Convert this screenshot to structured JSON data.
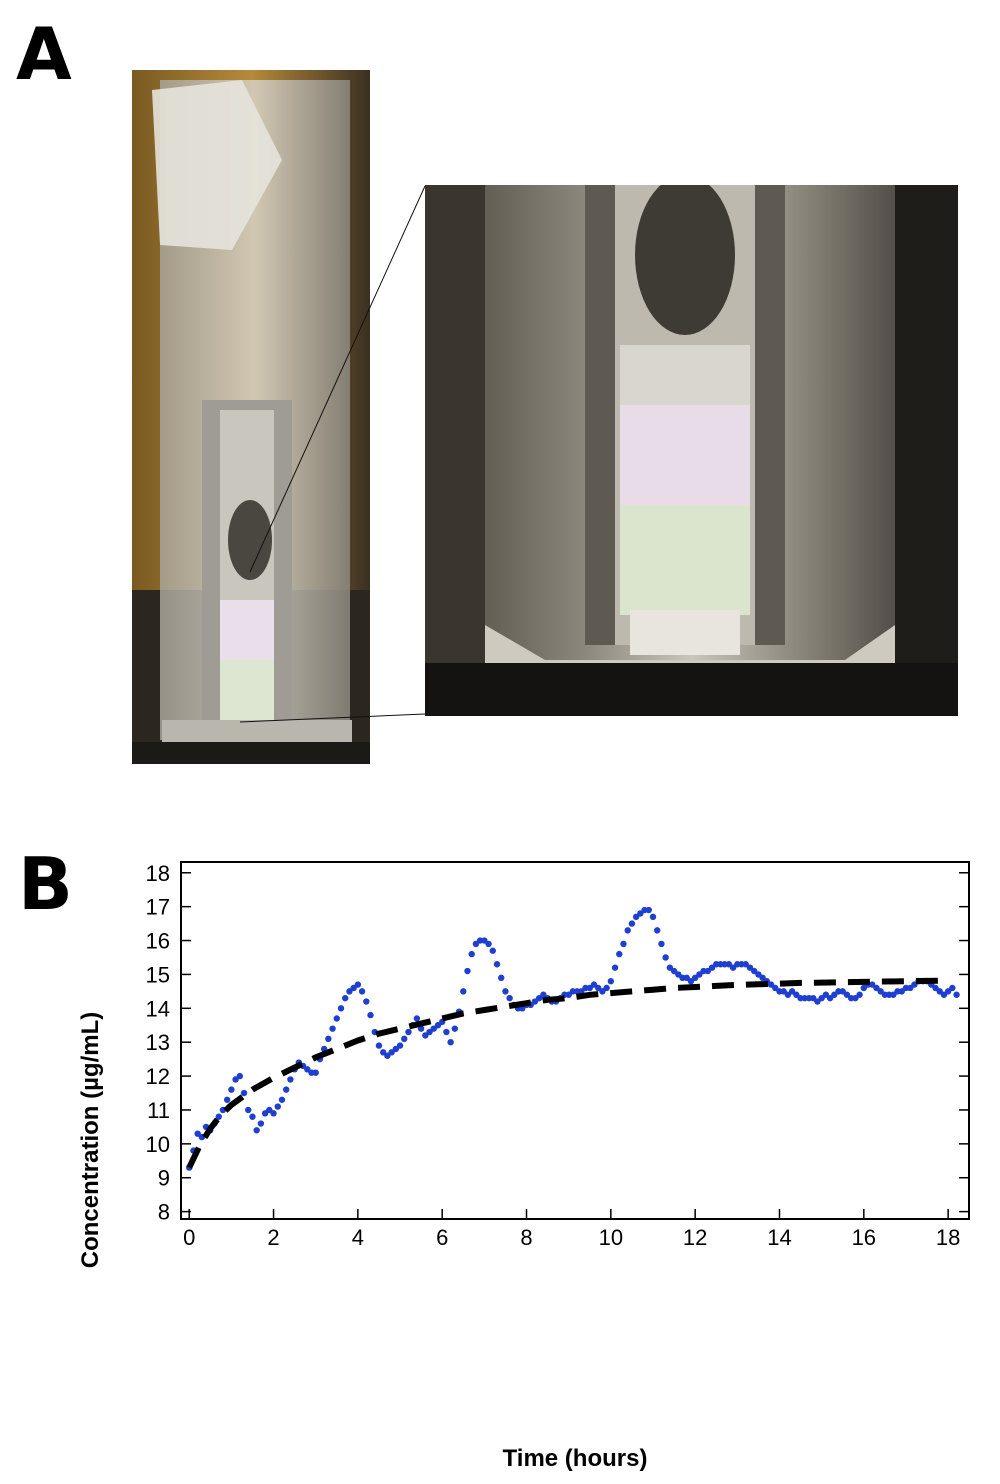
{
  "panels": {
    "a": {
      "label": "A",
      "photos": {
        "main": "cuvette-photo",
        "zoom": "cuvette-zoom-photo"
      }
    },
    "b": {
      "label": "B"
    }
  },
  "colors": {
    "points": "#1f3fd0",
    "fit": "#000000"
  },
  "chart_data": {
    "type": "scatter",
    "title": "",
    "xlabel": "Time (hours)",
    "ylabel": "Concentration (µg/mL)",
    "xlim": [
      -0.1,
      18.4
    ],
    "ylim": [
      7.9,
      18.2
    ],
    "xticks": [
      0,
      2,
      4,
      6,
      8,
      10,
      12,
      14,
      16,
      18
    ],
    "yticks": [
      8,
      9,
      10,
      11,
      12,
      13,
      14,
      15,
      16,
      17,
      18
    ],
    "grid": false,
    "legend": "none",
    "series": [
      {
        "kind": "points",
        "x": [
          0.0,
          0.1,
          0.2,
          0.3,
          0.4,
          0.5,
          0.6,
          0.7,
          0.8,
          0.9,
          1.0,
          1.1,
          1.2,
          1.3,
          1.4,
          1.5,
          1.6,
          1.7,
          1.8,
          1.9,
          2.0,
          2.1,
          2.2,
          2.3,
          2.4,
          2.5,
          2.6,
          2.7,
          2.8,
          2.9,
          3.0,
          3.1,
          3.2,
          3.3,
          3.4,
          3.5,
          3.6,
          3.7,
          3.8,
          3.9,
          4.0,
          4.1,
          4.2,
          4.3,
          4.4,
          4.5,
          4.6,
          4.7,
          4.8,
          4.9,
          5.0,
          5.1,
          5.2,
          5.3,
          5.4,
          5.5,
          5.6,
          5.7,
          5.8,
          5.9,
          6.0,
          6.1,
          6.2,
          6.3,
          6.4,
          6.5,
          6.6,
          6.7,
          6.8,
          6.9,
          7.0,
          7.1,
          7.2,
          7.3,
          7.4,
          7.5,
          7.6,
          7.7,
          7.8,
          7.9,
          8.0,
          8.1,
          8.2,
          8.3,
          8.4,
          8.5,
          8.6,
          8.7,
          8.8,
          8.9,
          9.0,
          9.1,
          9.2,
          9.3,
          9.4,
          9.5,
          9.6,
          9.7,
          9.8,
          9.9,
          10.0,
          10.1,
          10.2,
          10.3,
          10.4,
          10.5,
          10.6,
          10.7,
          10.8,
          10.9,
          11.0,
          11.1,
          11.2,
          11.3,
          11.4,
          11.5,
          11.6,
          11.7,
          11.8,
          11.9,
          12.0,
          12.1,
          12.2,
          12.3,
          12.4,
          12.5,
          12.6,
          12.7,
          12.8,
          12.9,
          13.0,
          13.1,
          13.2,
          13.3,
          13.4,
          13.5,
          13.6,
          13.7,
          13.8,
          13.9,
          14.0,
          14.1,
          14.2,
          14.3,
          14.4,
          14.5,
          14.6,
          14.7,
          14.8,
          14.9,
          15.0,
          15.1,
          15.2,
          15.3,
          15.4,
          15.5,
          15.6,
          15.7,
          15.8,
          15.9,
          16.0,
          16.1,
          16.2,
          16.3,
          16.4,
          16.5,
          16.6,
          16.7,
          16.8,
          16.9,
          17.0,
          17.1,
          17.2,
          17.3,
          17.4,
          17.5,
          17.6,
          17.7,
          17.8,
          17.9,
          18.0,
          18.1,
          18.2
        ],
        "y": [
          9.3,
          9.8,
          10.3,
          10.2,
          10.5,
          10.4,
          10.6,
          10.8,
          11.0,
          11.3,
          11.6,
          11.9,
          12.0,
          11.5,
          11.0,
          10.8,
          10.4,
          10.6,
          10.9,
          11.0,
          10.9,
          11.1,
          11.3,
          11.6,
          11.9,
          12.2,
          12.4,
          12.3,
          12.2,
          12.1,
          12.1,
          12.5,
          12.8,
          13.1,
          13.4,
          13.7,
          14.0,
          14.3,
          14.5,
          14.6,
          14.7,
          14.5,
          14.2,
          13.8,
          13.3,
          12.9,
          12.7,
          12.6,
          12.7,
          12.8,
          12.9,
          13.1,
          13.3,
          13.5,
          13.7,
          13.4,
          13.2,
          13.3,
          13.4,
          13.5,
          13.6,
          13.3,
          13.0,
          13.4,
          13.9,
          14.5,
          15.1,
          15.6,
          15.9,
          16.0,
          16.0,
          15.9,
          15.7,
          15.3,
          14.9,
          14.5,
          14.3,
          14.1,
          14.0,
          14.0,
          14.1,
          14.1,
          14.2,
          14.3,
          14.4,
          14.3,
          14.2,
          14.2,
          14.3,
          14.4,
          14.4,
          14.5,
          14.5,
          14.5,
          14.6,
          14.6,
          14.7,
          14.6,
          14.5,
          14.6,
          14.8,
          15.2,
          15.6,
          15.9,
          16.3,
          16.5,
          16.7,
          16.8,
          16.9,
          16.9,
          16.7,
          16.3,
          15.9,
          15.5,
          15.2,
          15.1,
          15.0,
          14.9,
          14.9,
          14.8,
          14.9,
          15.0,
          15.1,
          15.1,
          15.2,
          15.3,
          15.3,
          15.3,
          15.3,
          15.2,
          15.3,
          15.3,
          15.3,
          15.2,
          15.1,
          15.0,
          14.9,
          14.8,
          14.7,
          14.6,
          14.5,
          14.5,
          14.4,
          14.5,
          14.4,
          14.3,
          14.3,
          14.3,
          14.3,
          14.2,
          14.3,
          14.4,
          14.3,
          14.4,
          14.5,
          14.5,
          14.4,
          14.3,
          14.3,
          14.4,
          14.6,
          14.7,
          14.7,
          14.6,
          14.5,
          14.4,
          14.4,
          14.4,
          14.5,
          14.5,
          14.6,
          14.6,
          14.7,
          14.8,
          14.8,
          14.8,
          14.7,
          14.6,
          14.5,
          14.4,
          14.5,
          14.6,
          14.4
        ]
      },
      {
        "kind": "fit",
        "style": "dashed",
        "x": [
          0,
          0.25,
          0.5,
          0.75,
          1,
          1.5,
          2,
          2.5,
          3,
          3.5,
          4,
          4.5,
          5,
          5.5,
          6,
          6.5,
          7,
          7.5,
          8,
          8.5,
          9,
          9.5,
          10,
          10.5,
          11,
          11.5,
          12,
          12.5,
          13,
          13.5,
          14,
          14.5,
          15,
          15.5,
          16,
          16.5,
          17,
          17.5,
          18
        ],
        "y": [
          9.3,
          9.95,
          10.45,
          10.85,
          11.15,
          11.6,
          11.95,
          12.25,
          12.55,
          12.8,
          13.05,
          13.25,
          13.4,
          13.55,
          13.7,
          13.85,
          13.95,
          14.05,
          14.15,
          14.25,
          14.3,
          14.4,
          14.45,
          14.5,
          14.55,
          14.6,
          14.63,
          14.66,
          14.69,
          14.71,
          14.73,
          14.75,
          14.76,
          14.77,
          14.78,
          14.79,
          14.8,
          14.81,
          14.82
        ]
      }
    ]
  }
}
